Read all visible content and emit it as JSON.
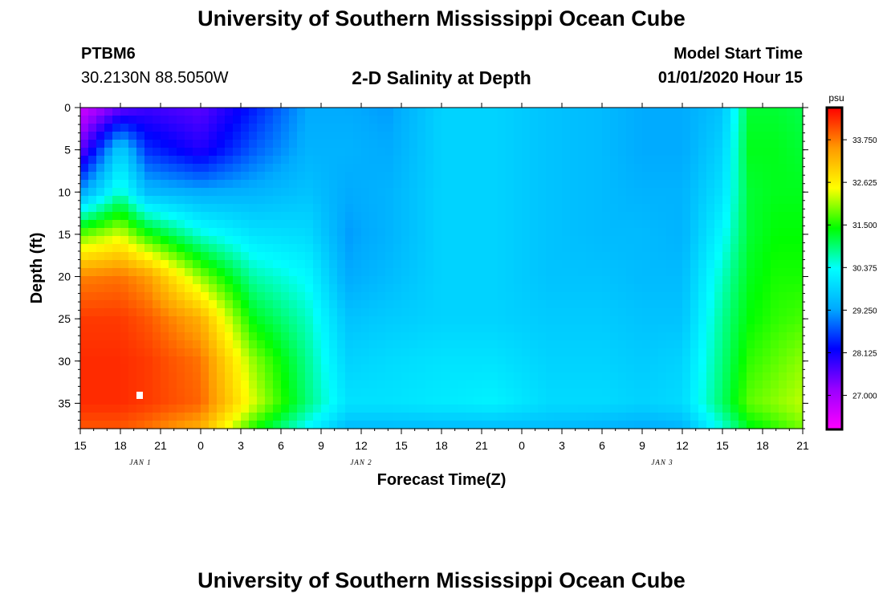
{
  "header": {
    "title": "University of Southern Mississippi Ocean Cube",
    "station_id": "PTBM6",
    "station_coords": "30.2130N 88.5050W",
    "chart_title": "2-D Salinity at Depth",
    "model_start_label": "Model Start Time",
    "model_start_value": "01/01/2020 Hour 15"
  },
  "footer": {
    "title": "University of Southern Mississippi Ocean Cube"
  },
  "chart_data": {
    "type": "heatmap",
    "title": "2-D Salinity at Depth",
    "xlabel": "Forecast Time(Z)",
    "ylabel": "Depth (ft)",
    "x_unit": "hours from 01/01/2020 15Z",
    "xlim": [
      0,
      54
    ],
    "ylim": [
      0,
      38
    ],
    "y_inverted": true,
    "x_tick_values": [
      0,
      3,
      6,
      9,
      12,
      15,
      18,
      21,
      24,
      27,
      30,
      33,
      36,
      39,
      42,
      45,
      48,
      51,
      54
    ],
    "x_tick_labels": [
      "15",
      "18",
      "21",
      "0",
      "3",
      "6",
      "9",
      "12",
      "15",
      "18",
      "21",
      "0",
      "3",
      "6",
      "9",
      "12",
      "15",
      "18",
      "21"
    ],
    "y_ticks": [
      0,
      5,
      10,
      15,
      20,
      25,
      30,
      35
    ],
    "date_labels": [
      {
        "x": 4.5,
        "label": "JAN 1"
      },
      {
        "x": 21,
        "label": "JAN 2"
      },
      {
        "x": 43.5,
        "label": "JAN 3"
      }
    ],
    "colorbar": {
      "unit": "psu",
      "min": 26.1,
      "max": 34.6,
      "ticks": [
        27.0,
        28.125,
        29.25,
        30.375,
        31.5,
        32.625,
        33.75
      ],
      "tick_labels": [
        "27.000",
        "28.125",
        "29.250",
        "30.375",
        "31.500",
        "32.625",
        "33.750"
      ],
      "colors": [
        "#ff00ff",
        "#9900ff",
        "#0000ff",
        "#00aaff",
        "#00ffff",
        "#00ff00",
        "#ffff00",
        "#ff9900",
        "#ff0000"
      ]
    },
    "grid": false,
    "depth_levels": [
      0,
      5,
      10,
      15,
      20,
      25,
      30,
      35,
      38
    ],
    "columns": [
      {
        "x": 0,
        "values": [
          26.6,
          27.5,
          29.2,
          31.8,
          33.7,
          34.2,
          34.3,
          34.3,
          34.0
        ]
      },
      {
        "x": 3,
        "values": [
          27.5,
          29.8,
          30.6,
          32.3,
          33.8,
          34.2,
          34.3,
          34.3,
          34.0
        ]
      },
      {
        "x": 5,
        "values": [
          27.8,
          28.5,
          29.5,
          31.5,
          33.5,
          34.0,
          34.2,
          34.2,
          33.8
        ]
      },
      {
        "x": 9,
        "values": [
          27.6,
          28.0,
          29.3,
          30.5,
          32.0,
          33.3,
          33.8,
          33.9,
          33.3
        ]
      },
      {
        "x": 13,
        "values": [
          28.4,
          28.8,
          29.4,
          30.0,
          30.7,
          31.3,
          32.0,
          32.3,
          31.5
        ]
      },
      {
        "x": 17,
        "values": [
          29.3,
          29.4,
          29.6,
          29.9,
          30.3,
          30.6,
          30.8,
          30.9,
          30.3
        ]
      },
      {
        "x": 20,
        "values": [
          29.3,
          29.4,
          29.3,
          29.2,
          29.3,
          29.6,
          29.8,
          30.0,
          29.5
        ]
      },
      {
        "x": 23,
        "values": [
          29.2,
          29.3,
          29.4,
          29.4,
          29.5,
          29.7,
          29.9,
          30.0,
          29.5
        ]
      },
      {
        "x": 27,
        "values": [
          29.8,
          29.8,
          29.8,
          29.8,
          29.8,
          29.8,
          30.0,
          30.1,
          29.5
        ]
      },
      {
        "x": 31,
        "values": [
          29.8,
          29.8,
          29.8,
          29.8,
          29.8,
          29.8,
          30.0,
          30.2,
          29.5
        ]
      },
      {
        "x": 35,
        "values": [
          29.6,
          29.6,
          29.6,
          29.6,
          29.6,
          29.7,
          29.8,
          29.9,
          29.5
        ]
      },
      {
        "x": 39,
        "values": [
          29.5,
          29.5,
          29.5,
          29.5,
          29.6,
          29.7,
          29.8,
          29.9,
          29.4
        ]
      },
      {
        "x": 42,
        "values": [
          29.3,
          29.3,
          29.4,
          29.5,
          29.5,
          29.6,
          29.7,
          29.8,
          29.3
        ]
      },
      {
        "x": 45,
        "values": [
          29.3,
          29.3,
          29.4,
          29.4,
          29.5,
          29.6,
          29.8,
          29.9,
          29.4
        ]
      },
      {
        "x": 48,
        "values": [
          29.6,
          29.8,
          30.0,
          30.3,
          30.6,
          30.8,
          30.9,
          31.0,
          30.5
        ]
      },
      {
        "x": 50,
        "values": [
          31.2,
          31.3,
          31.2,
          31.2,
          31.3,
          31.4,
          31.6,
          31.8,
          31.3
        ]
      },
      {
        "x": 52,
        "values": [
          31.2,
          31.3,
          31.3,
          31.4,
          31.5,
          31.6,
          31.8,
          32.0,
          31.6
        ]
      },
      {
        "x": 54,
        "values": [
          31.1,
          31.2,
          31.3,
          31.4,
          31.5,
          31.7,
          32.0,
          32.2,
          31.9
        ]
      }
    ]
  }
}
